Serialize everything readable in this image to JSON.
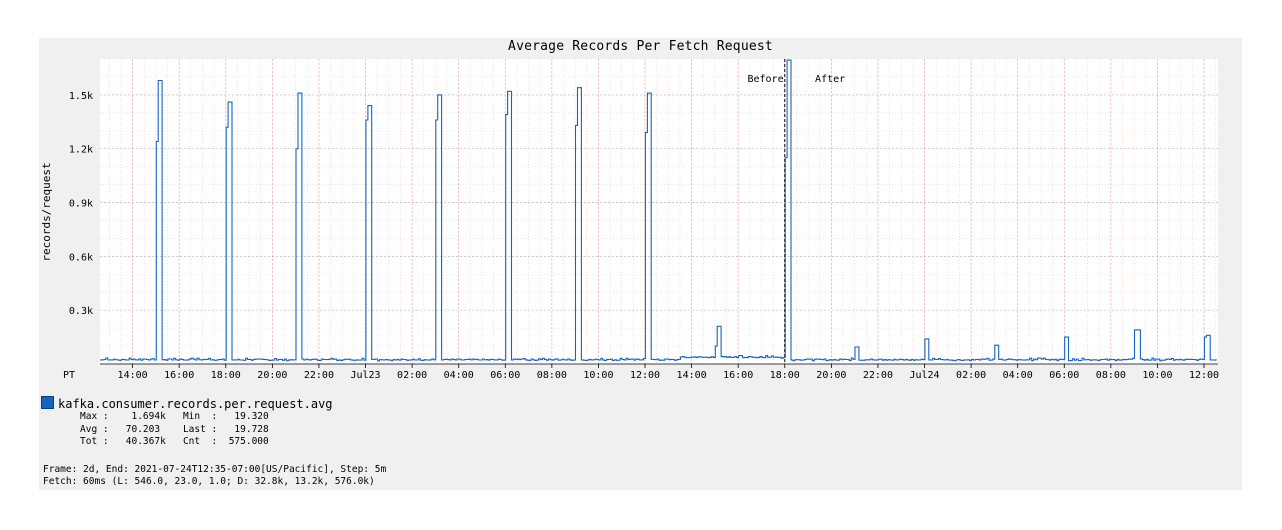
{
  "chart_data": {
    "type": "line",
    "title": "Average Records Per Fetch Request",
    "ylabel": "records/request",
    "ylim": [
      0,
      1700
    ],
    "yticks": [
      {
        "value": 300,
        "label": "0.3k"
      },
      {
        "value": 600,
        "label": "0.6k"
      },
      {
        "value": 900,
        "label": "0.9k"
      },
      {
        "value": 1200,
        "label": "1.2k"
      },
      {
        "value": 1500,
        "label": "1.5k"
      }
    ],
    "xlim": [
      12.6,
      60.6
    ],
    "timezone_label": "PT",
    "xticks": [
      {
        "value": 14,
        "label": "14:00"
      },
      {
        "value": 16,
        "label": "16:00"
      },
      {
        "value": 18,
        "label": "18:00"
      },
      {
        "value": 20,
        "label": "20:00"
      },
      {
        "value": 22,
        "label": "22:00"
      },
      {
        "value": 24,
        "label": "Jul23"
      },
      {
        "value": 26,
        "label": "02:00"
      },
      {
        "value": 28,
        "label": "04:00"
      },
      {
        "value": 30,
        "label": "06:00"
      },
      {
        "value": 32,
        "label": "08:00"
      },
      {
        "value": 34,
        "label": "10:00"
      },
      {
        "value": 36,
        "label": "12:00"
      },
      {
        "value": 38,
        "label": "14:00"
      },
      {
        "value": 40,
        "label": "16:00"
      },
      {
        "value": 42,
        "label": "18:00"
      },
      {
        "value": 44,
        "label": "20:00"
      },
      {
        "value": 46,
        "label": "22:00"
      },
      {
        "value": 48,
        "label": "Jul24"
      },
      {
        "value": 50,
        "label": "02:00"
      },
      {
        "value": 52,
        "label": "04:00"
      },
      {
        "value": 54,
        "label": "06:00"
      },
      {
        "value": 56,
        "label": "08:00"
      },
      {
        "value": 58,
        "label": "10:00"
      },
      {
        "value": 60,
        "label": "12:00"
      }
    ],
    "grid": true,
    "annotations": [
      {
        "text": "Before",
        "x": 41.0
      },
      {
        "text": "After",
        "x": 43.3
      }
    ],
    "marker_x": 42.0,
    "series": [
      {
        "name": "kafka.consumer.records.per.request.avg",
        "color": "#1565c0",
        "spikes": [
          {
            "x": 15.0,
            "w": 0.25,
            "peak": 1580,
            "shoulder": 1240
          },
          {
            "x": 18.0,
            "w": 0.25,
            "peak": 1460,
            "shoulder": 1320
          },
          {
            "x": 21.0,
            "w": 0.25,
            "peak": 1510,
            "shoulder": 1200
          },
          {
            "x": 24.0,
            "w": 0.25,
            "peak": 1440,
            "shoulder": 1360
          },
          {
            "x": 27.0,
            "w": 0.25,
            "peak": 1500,
            "shoulder": 1360
          },
          {
            "x": 30.0,
            "w": 0.25,
            "peak": 1520,
            "shoulder": 1390
          },
          {
            "x": 33.0,
            "w": 0.25,
            "peak": 1540,
            "shoulder": 1330
          },
          {
            "x": 36.0,
            "w": 0.25,
            "peak": 1510,
            "shoulder": 1290
          },
          {
            "x": 39.0,
            "w": 0.25,
            "peak": 210,
            "shoulder": 100
          },
          {
            "x": 42.0,
            "w": 0.25,
            "peak": 1694,
            "shoulder": 1150
          },
          {
            "x": 45.0,
            "w": 0.15,
            "peak": 95,
            "shoulder": 75
          },
          {
            "x": 48.0,
            "w": 0.15,
            "peak": 140,
            "shoulder": 80
          },
          {
            "x": 51.0,
            "w": 0.15,
            "peak": 105,
            "shoulder": 75
          },
          {
            "x": 54.0,
            "w": 0.15,
            "peak": 150,
            "shoulder": 110
          },
          {
            "x": 57.0,
            "w": 0.25,
            "peak": 190,
            "shoulder": 190
          },
          {
            "x": 60.0,
            "w": 0.25,
            "peak": 160,
            "shoulder": 150
          }
        ]
      }
    ]
  },
  "legend": {
    "series_name": "kafka.consumer.records.per.request.avg",
    "stats_line1": "Max :    1.694k   Min  :   19.320",
    "stats_line2": "Avg :   70.203    Last :   19.728",
    "stats_line3": "Tot :   40.367k   Cnt  :  575.000"
  },
  "footer": {
    "line1": "Frame: 2d, End: 2021-07-24T12:35-07:00[US/Pacific], Step: 5m",
    "line2": "Fetch: 60ms (L: 546.0, 23.0, 1.0; D: 32.8k, 13.2k, 576.0k)"
  }
}
